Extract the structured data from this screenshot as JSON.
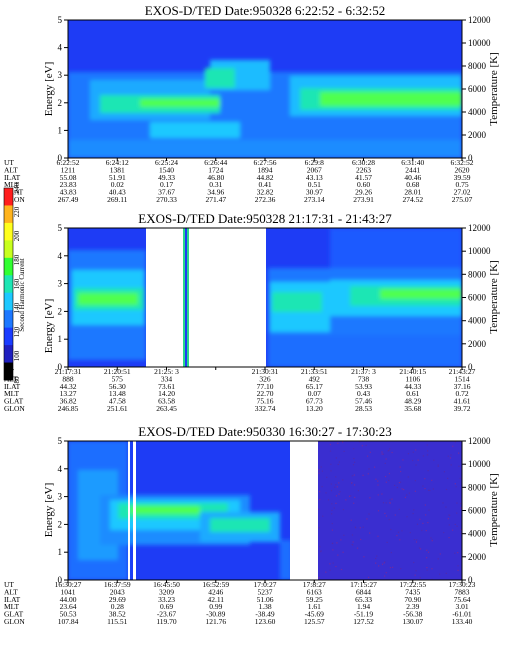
{
  "chart_data": [
    {
      "type": "heatmap",
      "title": "EXOS-D/TED   Date:950328   6:22:52 - 6:32:52",
      "ylabel": "Energy [eV]",
      "y2label": "Temperature [K]",
      "ylim": [
        0,
        5
      ],
      "yticks": [
        "0",
        "1",
        "2",
        "3",
        "4",
        "5"
      ],
      "y2ticks": [
        "0",
        "2000",
        "4000",
        "6000",
        "8000",
        "10000",
        "12000"
      ],
      "table_rows": [
        {
          "name": "UT",
          "values": [
            "6:22:52",
            "6:24:12",
            "6:25:24",
            "6:26:44",
            "6:27:56",
            "6:29:8",
            "6:30:28",
            "6:31:40",
            "6:32:52"
          ]
        },
        {
          "name": "ALT",
          "values": [
            "1211",
            "1381",
            "1540",
            "1724",
            "1894",
            "2067",
            "2263",
            "2441",
            "2620"
          ]
        },
        {
          "name": "ILAT",
          "values": [
            "55.08",
            "51.91",
            "49.33",
            "46.80",
            "44.82",
            "43.13",
            "41.57",
            "40.46",
            "39.59"
          ]
        },
        {
          "name": "MLT",
          "values": [
            "23.83",
            "0.02",
            "0.17",
            "0.31",
            "0.41",
            "0.51",
            "0.60",
            "0.68",
            "0.75"
          ]
        },
        {
          "name": "GLAT",
          "values": [
            "43.83",
            "40.43",
            "37.67",
            "34.96",
            "32.82",
            "30.97",
            "29.26",
            "28.01",
            "27.02"
          ]
        },
        {
          "name": "GLON",
          "values": [
            "267.49",
            "269.11",
            "270.33",
            "271.47",
            "272.36",
            "273.14",
            "273.91",
            "274.52",
            "275.07"
          ]
        }
      ]
    },
    {
      "type": "heatmap",
      "title": "EXOS-D/TED   Date:950328   21:17:31 - 21:43:27",
      "ylabel": "Energy [eV]",
      "y2label": "Temperature [K]",
      "ylim": [
        0,
        5
      ],
      "yticks": [
        "0",
        "1",
        "2",
        "3",
        "4",
        "5"
      ],
      "y2ticks": [
        "0",
        "2000",
        "4000",
        "6000",
        "8000",
        "10000",
        "12000"
      ],
      "table_rows": [
        {
          "name": "UT",
          "values": [
            "21:17:31",
            "21:20:51",
            "21:25: 3",
            "",
            "21:30:31",
            "21:33:51",
            "21:37: 3",
            "21:40:15",
            "21:43:27"
          ]
        },
        {
          "name": "ALT",
          "values": [
            "888",
            "575",
            "334",
            "",
            "326",
            "492",
            "738",
            "1106",
            "1514"
          ]
        },
        {
          "name": "ILAT",
          "values": [
            "44.32",
            "56.30",
            "73.61",
            "",
            "77.10",
            "65.17",
            "53.93",
            "44.33",
            "37.16"
          ]
        },
        {
          "name": "MLT",
          "values": [
            "13.27",
            "13.48",
            "14.20",
            "",
            "22.70",
            "0.07",
            "0.43",
            "0.61",
            "0.72"
          ]
        },
        {
          "name": "GLAT",
          "values": [
            "36.82",
            "47.58",
            "63.58",
            "",
            "75.16",
            "67.73",
            "57.46",
            "48.29",
            "41.61"
          ]
        },
        {
          "name": "GLON",
          "values": [
            "246.85",
            "251.61",
            "263.45",
            "",
            "332.74",
            "13.20",
            "28.53",
            "35.68",
            "39.72"
          ]
        }
      ]
    },
    {
      "type": "heatmap",
      "title": "EXOS-D/TED   Date:950330   16:30:27 - 17:30:23",
      "ylabel": "Energy [eV]",
      "y2label": "Temperature [K]",
      "ylim": [
        0,
        5
      ],
      "yticks": [
        "0",
        "1",
        "2",
        "3",
        "4",
        "5"
      ],
      "y2ticks": [
        "0",
        "2000",
        "4000",
        "6000",
        "8000",
        "10000",
        "12000"
      ],
      "table_rows": [
        {
          "name": "UT",
          "values": [
            "16:30:27",
            "16:37:59",
            "16:45:50",
            "16:52:59",
            "17:0:27",
            "17:8:27",
            "17:15:27",
            "17:22:55",
            "17:30:23"
          ]
        },
        {
          "name": "ALT",
          "values": [
            "1041",
            "2043",
            "3209",
            "4246",
            "5237",
            "6163",
            "6844",
            "7435",
            "7883"
          ]
        },
        {
          "name": "ILAT",
          "values": [
            "44.00",
            "29.69",
            "33.23",
            "42.11",
            "51.06",
            "59.25",
            "65.33",
            "70.90",
            "75.64"
          ]
        },
        {
          "name": "MLT",
          "values": [
            "23.64",
            "0.28",
            "0.69",
            "0.99",
            "1.38",
            "1.61",
            "1.94",
            "2.39",
            "3.01"
          ]
        },
        {
          "name": "GLAT",
          "values": [
            "50.53",
            "38.52",
            "-23.67",
            "-30.89",
            "-38.49",
            "-45.69",
            "-51.19",
            "-56.38",
            "-61.01"
          ]
        },
        {
          "name": "GLON",
          "values": [
            "107.84",
            "115.51",
            "119.70",
            "121.76",
            "123.60",
            "125.57",
            "127.52",
            "130.07",
            "133.40"
          ]
        }
      ]
    }
  ],
  "colorbar": {
    "label": "Second Harmonic Current",
    "ticks": [
      "80",
      "100",
      "120",
      "140",
      "160",
      "180",
      "200",
      "220",
      "240"
    ],
    "colors": [
      "#000000",
      "#1f1fbf",
      "#1a3cff",
      "#1e78ff",
      "#1ec8ff",
      "#1ee6b4",
      "#32ff32",
      "#c8ff1e",
      "#ffff1e",
      "#ffb41e",
      "#ff1e1e"
    ]
  }
}
